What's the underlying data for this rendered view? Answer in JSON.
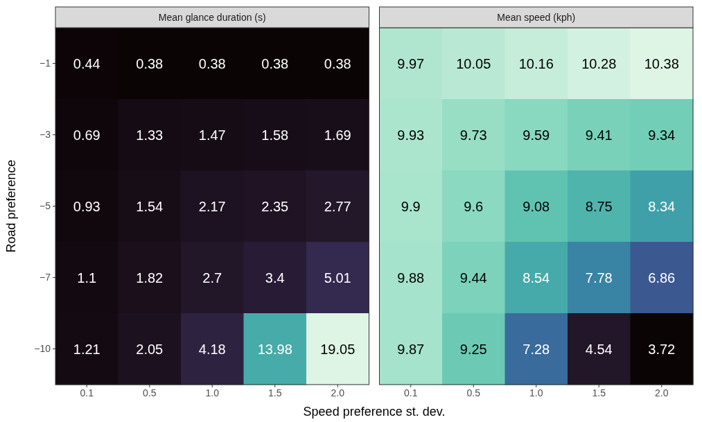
{
  "chart_data": [
    {
      "type": "heatmap",
      "title": "Mean glance duration (s)",
      "data_labels": true,
      "ylabel": "Road preference",
      "xlabel": "Speed preference st. dev.",
      "categories": [
        "0.1",
        "0.5",
        "1.0",
        "1.5",
        "2.0"
      ],
      "y_categories": [
        "−1",
        "−3",
        "−5",
        "−7",
        "−10"
      ],
      "cells": [
        [
          0.44,
          0.38,
          0.38,
          0.38,
          0.38
        ],
        [
          0.69,
          1.33,
          1.47,
          1.58,
          1.69
        ],
        [
          0.93,
          1.54,
          2.17,
          2.35,
          2.77
        ],
        [
          1.1,
          1.82,
          2.7,
          3.4,
          5.01
        ],
        [
          1.21,
          2.05,
          4.18,
          13.98,
          19.05
        ]
      ]
    },
    {
      "type": "heatmap",
      "title": "Mean speed (kph)",
      "data_labels": true,
      "tick_labels": "x",
      "categories": [
        "0.1",
        "0.5",
        "1.0",
        "1.5",
        "2.0"
      ],
      "y_categories": [
        "−1",
        "−3",
        "−5",
        "−7",
        "−10"
      ],
      "cells": [
        [
          9.97,
          10.05,
          10.16,
          10.28,
          10.38
        ],
        [
          9.93,
          9.73,
          9.59,
          9.41,
          9.34
        ],
        [
          9.9,
          9.6,
          9.08,
          8.75,
          8.34
        ],
        [
          9.88,
          9.44,
          8.54,
          7.78,
          6.86
        ],
        [
          9.87,
          9.25,
          7.28,
          4.54,
          3.72
        ]
      ]
    }
  ]
}
